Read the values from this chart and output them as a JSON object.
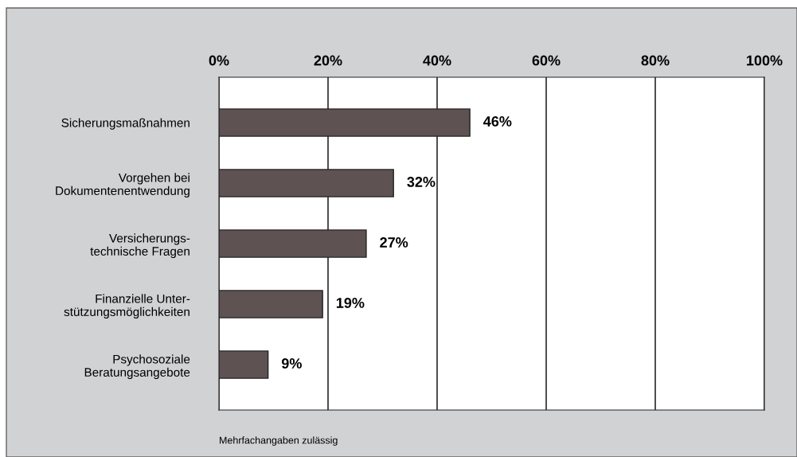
{
  "chart_data": {
    "type": "bar",
    "orientation": "horizontal",
    "categories": [
      "Sicherungsmaßnahmen",
      "Vorgehen bei\nDokumentenentwendung",
      "Versicherungs-\ntechnische Fragen",
      "Finanzielle Unter-\nstützungsmöglichkeiten",
      "Psychosoziale\nBeratungsangebote"
    ],
    "values": [
      46,
      32,
      27,
      19,
      9
    ],
    "color": "#5e5252",
    "value_labels": [
      "46%",
      "32%",
      "27%",
      "19%",
      "9%"
    ],
    "xlim": [
      0,
      100
    ],
    "xticks": [
      {
        "value": 0,
        "label": "0%"
      },
      {
        "value": 20,
        "label": "20%"
      },
      {
        "value": 40,
        "label": "40%"
      },
      {
        "value": 60,
        "label": "60%"
      },
      {
        "value": 80,
        "label": "80%"
      },
      {
        "value": 100,
        "label": "100%"
      }
    ],
    "grid": "x",
    "annotations": [
      "Mehrfachangaben zulässig"
    ]
  }
}
